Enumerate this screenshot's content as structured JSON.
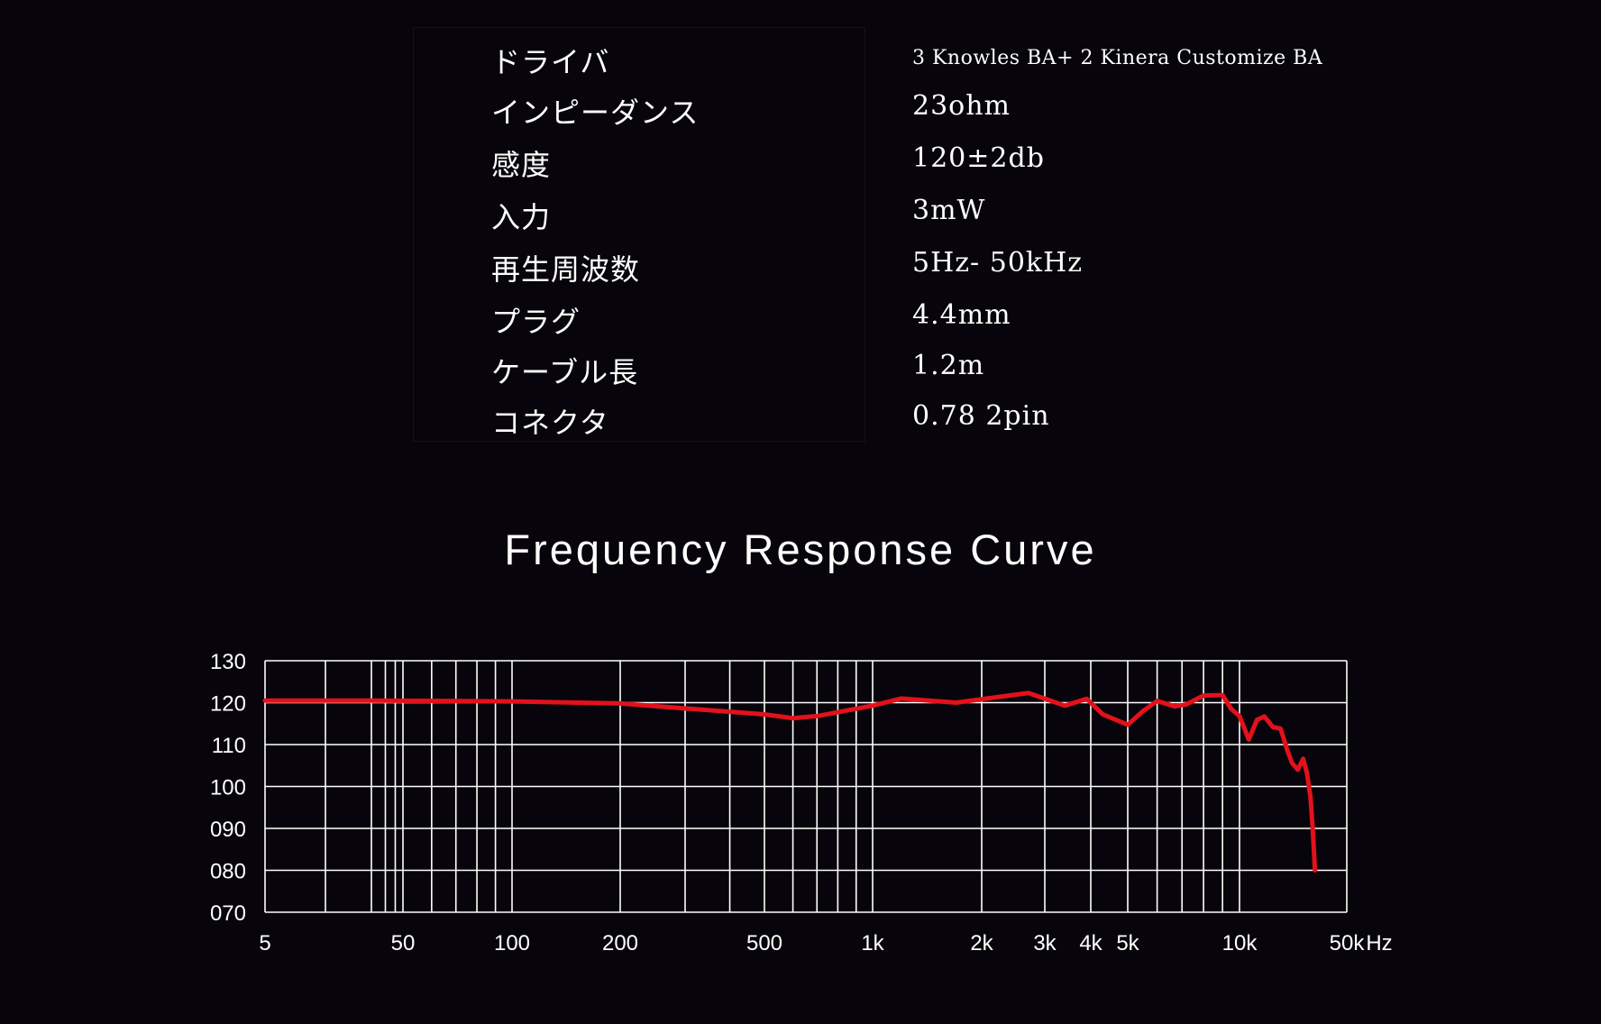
{
  "specs": [
    {
      "label": "ドライバ",
      "value": "3 Knowles BA+ 2 Kinera Customize BA"
    },
    {
      "label": "インピーダンス",
      "value": "23ohm"
    },
    {
      "label": "感度",
      "value": "120±2db"
    },
    {
      "label": "入力",
      "value": "3mW"
    },
    {
      "label": "再生周波数",
      "value": "5Hz- 50kHz"
    },
    {
      "label": "プラグ",
      "value": "4.4mm"
    },
    {
      "label": "ケーブル長",
      "value": "1.2m"
    },
    {
      "label": "コネクタ",
      "value": "0.78 2pin"
    }
  ],
  "chart_data": {
    "type": "line",
    "title": "Frequency Response Curve",
    "xscale": "log",
    "xunit": "Hz",
    "xlim": [
      5,
      50000
    ],
    "ylim": [
      70,
      130
    ],
    "grid": true,
    "xtick_labels": [
      {
        "label": "5",
        "value": 5
      },
      {
        "label": "50",
        "value": 50
      },
      {
        "label": "100",
        "value": 100
      },
      {
        "label": "200",
        "value": 200
      },
      {
        "label": "500",
        "value": 500
      },
      {
        "label": "1k",
        "value": 1000
      },
      {
        "label": "2k",
        "value": 2000
      },
      {
        "label": "3k",
        "value": 3000
      },
      {
        "label": "4k",
        "value": 4000
      },
      {
        "label": "5k",
        "value": 5000
      },
      {
        "label": "10k",
        "value": 10000
      },
      {
        "label": "50k",
        "value": 50000
      }
    ],
    "ytick_labels": [
      {
        "label": "130",
        "value": 130
      },
      {
        "label": "120",
        "value": 120
      },
      {
        "label": "110",
        "value": 110
      },
      {
        "label": "100",
        "value": 100
      },
      {
        "label": "090",
        "value": 90
      },
      {
        "label": "080",
        "value": 80
      },
      {
        "label": "070",
        "value": 70
      }
    ],
    "x_gridlines": [
      5,
      10,
      20,
      30,
      40,
      50,
      60,
      70,
      80,
      90,
      100,
      200,
      300,
      400,
      500,
      600,
      700,
      800,
      900,
      1000,
      2000,
      3000,
      4000,
      5000,
      6000,
      7000,
      8000,
      9000,
      10000,
      50000
    ],
    "y_gridlines": [
      70,
      80,
      90,
      100,
      110,
      120,
      130
    ],
    "series": [
      {
        "color": "#e3111b",
        "x": [
          5,
          20,
          100,
          200,
          500,
          600,
          700,
          1000,
          1200,
          1700,
          2300,
          2700,
          3400,
          3900,
          4300,
          5000,
          5500,
          6000,
          6700,
          7200,
          8000,
          9000,
          9500,
          10000,
          11500,
          13000,
          14500,
          16500,
          18500,
          20500,
          22000,
          24000,
          26000,
          27500,
          29000,
          30000,
          31000
        ],
        "y": [
          120.5,
          120.5,
          120.3,
          119.8,
          117.2,
          116.3,
          116.8,
          119.3,
          121.0,
          120.0,
          121.5,
          122.3,
          119.3,
          120.9,
          117.2,
          114.7,
          118.0,
          120.4,
          119.1,
          119.6,
          121.7,
          121.8,
          118.5,
          116.8,
          111.2,
          115.9,
          116.7,
          114.2,
          113.8,
          108.6,
          105.6,
          104.0,
          106.6,
          103.2,
          97.5,
          90.0,
          80.0
        ]
      }
    ]
  }
}
